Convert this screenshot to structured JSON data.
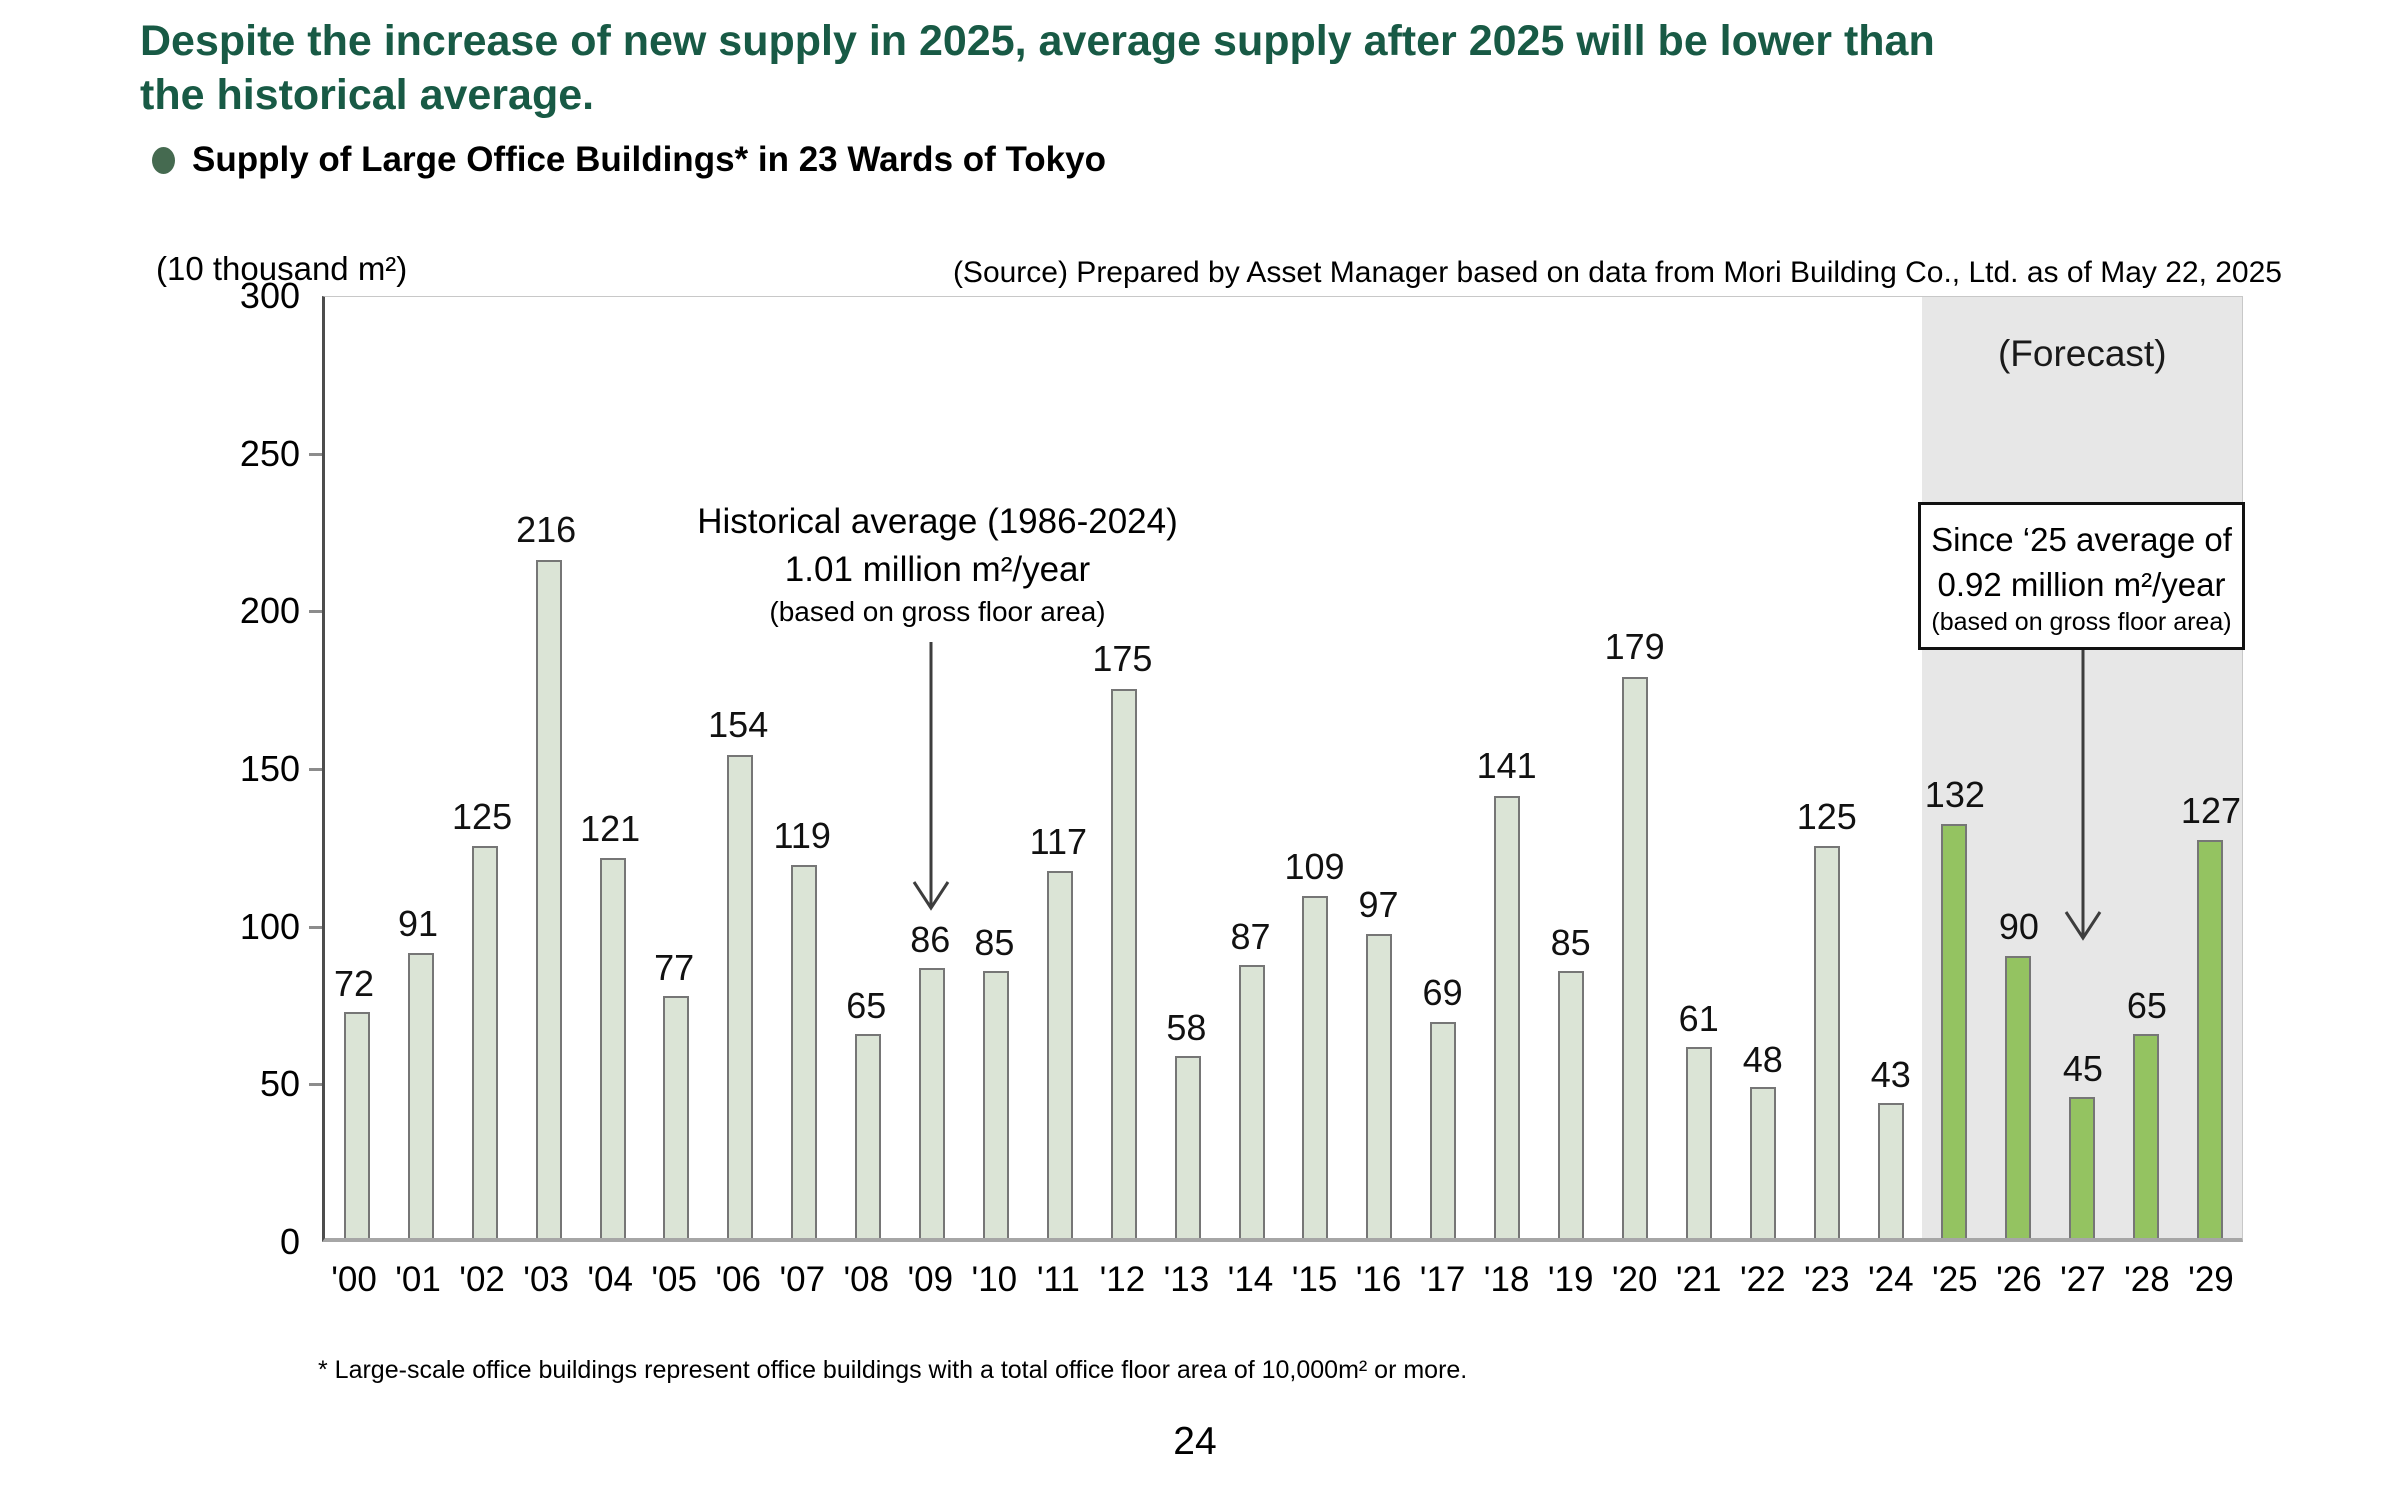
{
  "slide": {
    "title_lines": [
      "Despite the increase of new supply in 2025, average supply after 2025 will be lower than",
      "the historical average."
    ],
    "section_title": "Supply of Large Office Buildings* in 23 Wards of Tokyo",
    "source_note": "(Source) Prepared by Asset Manager based on data from Mori Building Co., Ltd. as of May 22, 2025",
    "footnote": "* Large-scale office buildings represent office buildings with a total office floor area of 10,000m² or more.",
    "page_number": "24"
  },
  "chart_data": {
    "type": "bar",
    "title": "Supply of Large Office Buildings* in 23 Wards of Tokyo",
    "unit_label": "(10 thousand m²)",
    "xlabel": "",
    "ylabel": "10 thousand m²",
    "categories": [
      "'00",
      "'01",
      "'02",
      "'03",
      "'04",
      "'05",
      "'06",
      "'07",
      "'08",
      "'09",
      "'10",
      "'11",
      "'12",
      "'13",
      "'14",
      "'15",
      "'16",
      "'17",
      "'18",
      "'19",
      "'20",
      "'21",
      "'22",
      "'23",
      "'24",
      "'25",
      "'26",
      "'27",
      "'28",
      "'29"
    ],
    "values": [
      72,
      91,
      125,
      216,
      121,
      77,
      154,
      119,
      65,
      86,
      85,
      117,
      175,
      58,
      87,
      109,
      97,
      69,
      141,
      85,
      179,
      61,
      48,
      125,
      43,
      132,
      90,
      45,
      65,
      127
    ],
    "ylim": [
      0,
      300
    ],
    "yticks": [
      0,
      50,
      100,
      150,
      200,
      250,
      300
    ],
    "grid": false,
    "legend": "none",
    "forecast": {
      "start_category": "'25",
      "start_index": 25,
      "label": "(Forecast)",
      "box_lines": [
        "Since ‘25 average of",
        "0.92 million m²/year",
        "(based on gross floor area)"
      ]
    },
    "historical_annotation": {
      "lines": [
        "Historical average (1986-2024)",
        "1.01 million m²/year",
        "(based on gross floor area)"
      ],
      "arrow_points_to_category": "'09"
    },
    "forecast_arrow_points_to_category": "'27",
    "colors": {
      "historical_bar": "#dbe4d6",
      "forecast_bar": "#94c361",
      "bar_outline": "#767676",
      "forecast_bg": "#e7e7e7",
      "title_green": "#185a45",
      "bullet_green": "#456a50"
    }
  }
}
